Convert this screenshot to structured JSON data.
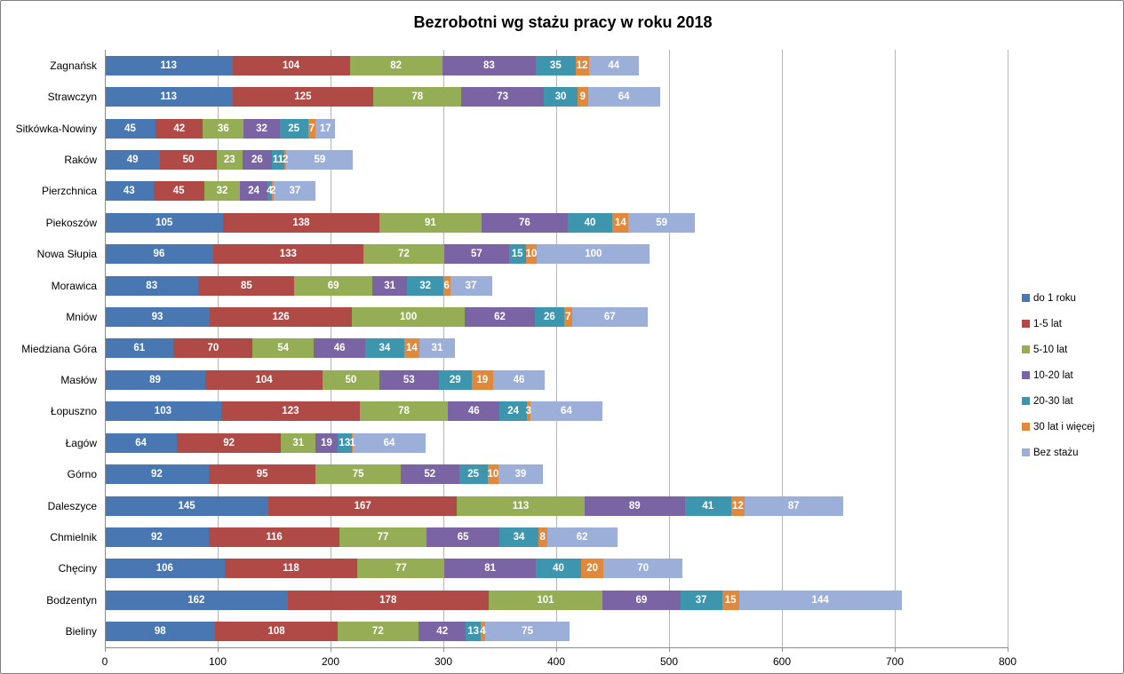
{
  "chart_data": {
    "type": "bar",
    "orientation": "horizontal",
    "stacked": true,
    "title": "Bezrobotni wg stażu pracy w roku 2018",
    "categories": [
      "Zagnańsk",
      "Strawczyn",
      "Sitkówka-Nowiny",
      "Raków",
      "Pierzchnica",
      "Piekoszów",
      "Nowa Słupia",
      "Morawica",
      "Mniów",
      "Miedziana Góra",
      "Masłów",
      "Łopuszno",
      "Łagów",
      "Górno",
      "Daleszyce",
      "Chmielnik",
      "Chęciny",
      "Bodzentyn",
      "Bieliny"
    ],
    "series": [
      {
        "name": "do 1 roku",
        "color": "#4977b2",
        "values": [
          113,
          113,
          45,
          49,
          43,
          105,
          96,
          83,
          93,
          61,
          89,
          103,
          64,
          92,
          145,
          92,
          106,
          162,
          98
        ]
      },
      {
        "name": "1-5 lat",
        "color": "#b04a46",
        "values": [
          104,
          125,
          42,
          50,
          45,
          138,
          133,
          85,
          126,
          70,
          104,
          123,
          92,
          95,
          167,
          116,
          118,
          178,
          108
        ]
      },
      {
        "name": "5-10 lat",
        "color": "#95ad55",
        "values": [
          82,
          78,
          36,
          23,
          32,
          91,
          72,
          69,
          100,
          54,
          50,
          78,
          31,
          75,
          113,
          77,
          77,
          101,
          72
        ]
      },
      {
        "name": "10-20 lat",
        "color": "#7b64a4",
        "values": [
          83,
          73,
          32,
          26,
          24,
          76,
          57,
          31,
          62,
          46,
          53,
          46,
          19,
          52,
          89,
          65,
          81,
          69,
          42
        ]
      },
      {
        "name": "20-30 lat",
        "color": "#3d96ae",
        "values": [
          35,
          30,
          25,
          11,
          4,
          40,
          15,
          32,
          26,
          34,
          29,
          24,
          13,
          25,
          41,
          34,
          40,
          37,
          13
        ]
      },
      {
        "name": "30 lat i więcej",
        "color": "#e0893d",
        "values": [
          12,
          9,
          7,
          2,
          2,
          14,
          10,
          6,
          7,
          14,
          19,
          3,
          1,
          10,
          12,
          8,
          20,
          15,
          4
        ]
      },
      {
        "name": "Bez stażu",
        "color": "#9cafd8",
        "values": [
          44,
          64,
          17,
          59,
          37,
          59,
          100,
          37,
          67,
          31,
          46,
          64,
          64,
          39,
          87,
          62,
          70,
          144,
          75
        ]
      }
    ],
    "xlim": [
      0,
      800
    ],
    "x_ticks": [
      0,
      100,
      200,
      300,
      400,
      500,
      600,
      700,
      800
    ],
    "grid": true,
    "legend_position": "right",
    "data_labels": "inside-white-bold"
  }
}
